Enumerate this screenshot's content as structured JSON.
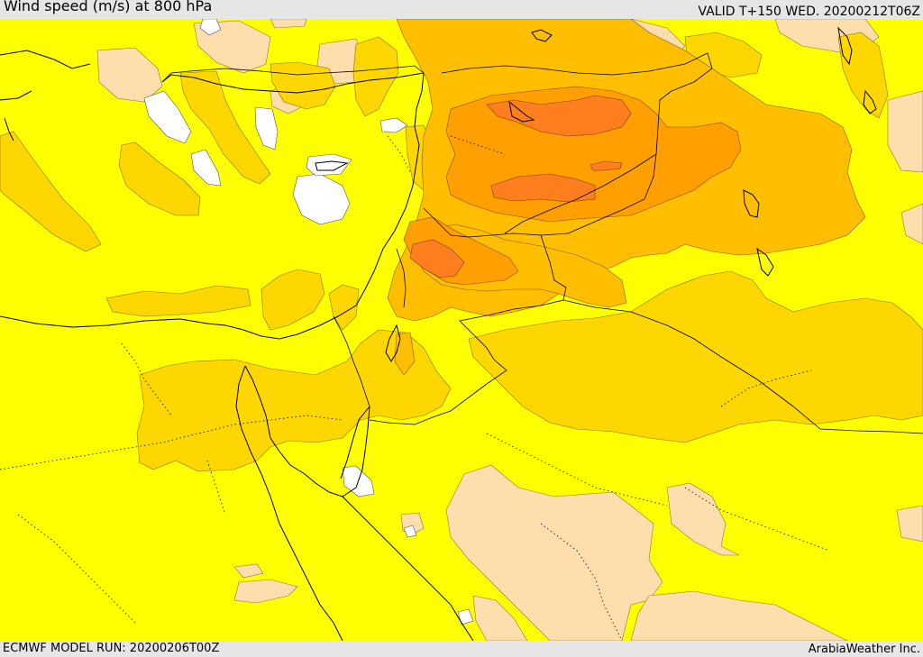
{
  "header": {
    "title": "Wind speed (m/s) at 800 hPa",
    "valid": "VALID T+150 WED. 20200212T06Z"
  },
  "footer": {
    "model_run": "ECMWF MODEL RUN: 20200206T00Z",
    "credit": "ArabiaWeather Inc."
  },
  "map": {
    "field": "wind speed",
    "level_hpa": 800,
    "units": "m/s",
    "colors": {
      "calm": "#ffffff",
      "light": "#ffdead",
      "base": "#ffff00",
      "moderate": "#ffd700",
      "strong": "#ffbf00",
      "stronger": "#ff9f00",
      "strongest": "#ff7f1e",
      "boundary": "#000000"
    }
  }
}
